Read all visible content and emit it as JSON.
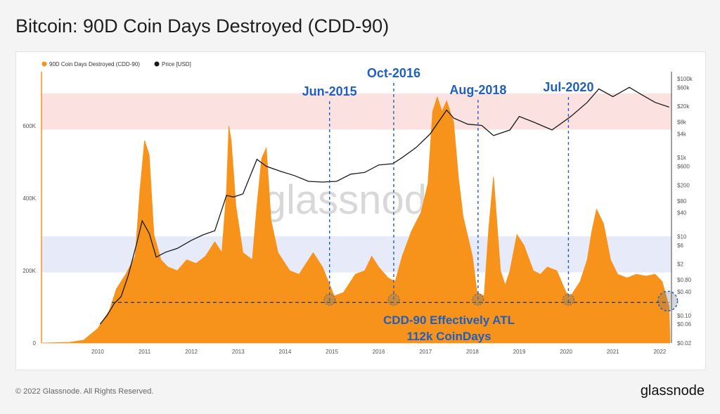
{
  "page": {
    "title": "Bitcoin: 90D Coin Days Destroyed (CDD-90)",
    "footer_left": "© 2022 Glassnode. All Rights Reserved.",
    "footer_right": "glassnode",
    "watermark": "glassnode"
  },
  "colors": {
    "cdd": "#f7931a",
    "price": "#1a1a1a",
    "annotation": "#1f5fbf",
    "red_band": "#fbdcdc",
    "blue_band": "#e3e8f8"
  },
  "chart_data": {
    "type": "area",
    "legend": [
      {
        "label": "90D Coin Days Destroyed (CDD-90)",
        "color": "#f7931a"
      },
      {
        "label": "Price [USD]",
        "color": "#1a1a1a"
      }
    ],
    "x_ticks": [
      "2010",
      "2011",
      "2012",
      "2013",
      "2014",
      "2015",
      "2016",
      "2017",
      "2018",
      "2019",
      "2020",
      "2021",
      "2022"
    ],
    "left_axis": {
      "ticks": [
        "0",
        "200K",
        "400K",
        "600K"
      ],
      "values": [
        0,
        200000,
        400000,
        600000
      ],
      "ylim": [
        0,
        750000
      ]
    },
    "right_axis": {
      "scale": "log",
      "ticks": [
        "$100k",
        "$60k",
        "$20k",
        "$8k",
        "$4k",
        "$1k",
        "$600",
        "$200",
        "$80",
        "$40",
        "$10",
        "$6",
        "$2",
        "$0.80",
        "$0.40",
        "$0.10",
        "$0.06",
        "$0.02"
      ],
      "values": [
        100000,
        60000,
        20000,
        8000,
        4000,
        1000,
        600,
        200,
        80,
        40,
        10,
        6,
        2,
        0.8,
        0.4,
        0.1,
        0.06,
        0.02
      ],
      "ylim": [
        0.02,
        150000
      ]
    },
    "bands": [
      {
        "name": "red",
        "axis": "left",
        "from": 590000,
        "to": 690000
      },
      {
        "name": "blue",
        "axis": "left",
        "from": 195000,
        "to": 295000
      }
    ],
    "series": [
      {
        "name": "90D Coin Days Destroyed (CDD-90)",
        "axis": "left",
        "points": [
          [
            2009.3,
            0
          ],
          [
            2009.9,
            2000
          ],
          [
            2010.2,
            8000
          ],
          [
            2010.5,
            40000
          ],
          [
            2010.75,
            90000
          ],
          [
            2010.9,
            150000
          ],
          [
            2011.1,
            190000
          ],
          [
            2011.3,
            240000
          ],
          [
            2011.4,
            420000
          ],
          [
            2011.5,
            560000
          ],
          [
            2011.6,
            520000
          ],
          [
            2011.7,
            300000
          ],
          [
            2011.85,
            230000
          ],
          [
            2012.0,
            210000
          ],
          [
            2012.2,
            200000
          ],
          [
            2012.4,
            230000
          ],
          [
            2012.6,
            220000
          ],
          [
            2012.8,
            240000
          ],
          [
            2013.0,
            280000
          ],
          [
            2013.15,
            250000
          ],
          [
            2013.25,
            420000
          ],
          [
            2013.3,
            600000
          ],
          [
            2013.35,
            560000
          ],
          [
            2013.45,
            380000
          ],
          [
            2013.6,
            250000
          ],
          [
            2013.8,
            230000
          ],
          [
            2013.9,
            380000
          ],
          [
            2014.0,
            510000
          ],
          [
            2014.1,
            540000
          ],
          [
            2014.2,
            340000
          ],
          [
            2014.35,
            250000
          ],
          [
            2014.6,
            200000
          ],
          [
            2014.8,
            190000
          ],
          [
            2015.0,
            230000
          ],
          [
            2015.1,
            250000
          ],
          [
            2015.3,
            210000
          ],
          [
            2015.55,
            130000
          ],
          [
            2015.75,
            140000
          ],
          [
            2016.0,
            190000
          ],
          [
            2016.2,
            200000
          ],
          [
            2016.35,
            240000
          ],
          [
            2016.5,
            210000
          ],
          [
            2016.7,
            180000
          ],
          [
            2016.85,
            170000
          ],
          [
            2017.0,
            240000
          ],
          [
            2017.2,
            310000
          ],
          [
            2017.4,
            360000
          ],
          [
            2017.55,
            440000
          ],
          [
            2017.65,
            640000
          ],
          [
            2017.75,
            680000
          ],
          [
            2017.85,
            640000
          ],
          [
            2017.95,
            670000
          ],
          [
            2018.1,
            610000
          ],
          [
            2018.2,
            460000
          ],
          [
            2018.3,
            350000
          ],
          [
            2018.5,
            240000
          ],
          [
            2018.6,
            140000
          ],
          [
            2018.75,
            130000
          ],
          [
            2018.85,
            320000
          ],
          [
            2018.95,
            460000
          ],
          [
            2019.1,
            200000
          ],
          [
            2019.2,
            160000
          ],
          [
            2019.3,
            200000
          ],
          [
            2019.45,
            300000
          ],
          [
            2019.6,
            270000
          ],
          [
            2019.8,
            200000
          ],
          [
            2019.95,
            190000
          ],
          [
            2020.1,
            210000
          ],
          [
            2020.3,
            200000
          ],
          [
            2020.5,
            140000
          ],
          [
            2020.6,
            130000
          ],
          [
            2020.8,
            170000
          ],
          [
            2020.95,
            230000
          ],
          [
            2021.05,
            310000
          ],
          [
            2021.15,
            370000
          ],
          [
            2021.3,
            330000
          ],
          [
            2021.45,
            230000
          ],
          [
            2021.6,
            190000
          ],
          [
            2021.8,
            180000
          ],
          [
            2022.0,
            190000
          ],
          [
            2022.2,
            185000
          ],
          [
            2022.4,
            190000
          ],
          [
            2022.55,
            170000
          ],
          [
            2022.7,
            100000
          ],
          [
            2022.72,
            0
          ]
        ]
      },
      {
        "name": "Price [USD]",
        "axis": "right",
        "points": [
          [
            2010.55,
            0.06
          ],
          [
            2010.7,
            0.1
          ],
          [
            2010.85,
            0.2
          ],
          [
            2011.0,
            0.3
          ],
          [
            2011.15,
            1
          ],
          [
            2011.35,
            8
          ],
          [
            2011.45,
            25
          ],
          [
            2011.6,
            12
          ],
          [
            2011.75,
            3
          ],
          [
            2011.95,
            4
          ],
          [
            2012.2,
            5
          ],
          [
            2012.5,
            8
          ],
          [
            2012.75,
            11
          ],
          [
            2013.0,
            14
          ],
          [
            2013.25,
            110
          ],
          [
            2013.4,
            100
          ],
          [
            2013.6,
            120
          ],
          [
            2013.9,
            900
          ],
          [
            2014.1,
            600
          ],
          [
            2014.4,
            450
          ],
          [
            2014.7,
            350
          ],
          [
            2015.0,
            250
          ],
          [
            2015.3,
            240
          ],
          [
            2015.6,
            250
          ],
          [
            2015.9,
            380
          ],
          [
            2016.2,
            420
          ],
          [
            2016.5,
            650
          ],
          [
            2016.8,
            700
          ],
          [
            2017.0,
            1000
          ],
          [
            2017.3,
            1800
          ],
          [
            2017.6,
            4000
          ],
          [
            2017.95,
            16000
          ],
          [
            2018.1,
            10000
          ],
          [
            2018.4,
            7000
          ],
          [
            2018.7,
            6500
          ],
          [
            2018.95,
            3600
          ],
          [
            2019.3,
            5000
          ],
          [
            2019.5,
            11000
          ],
          [
            2019.8,
            8000
          ],
          [
            2020.2,
            5000
          ],
          [
            2020.6,
            11000
          ],
          [
            2020.95,
            25000
          ],
          [
            2021.2,
            55000
          ],
          [
            2021.5,
            35000
          ],
          [
            2021.85,
            60000
          ],
          [
            2022.1,
            40000
          ],
          [
            2022.4,
            25000
          ],
          [
            2022.7,
            19000
          ]
        ]
      }
    ],
    "markers": [
      {
        "label": "Jun-2015",
        "x": 2015.45
      },
      {
        "label": "Oct-2016",
        "x": 2016.82
      },
      {
        "label": "Aug-2018",
        "x": 2018.62
      },
      {
        "label": "Jul-2020",
        "x": 2020.55
      }
    ],
    "atl_line": {
      "value": 112000,
      "from_x": 2010.8,
      "to_x": 2022.7
    },
    "annotation": {
      "line1": "CDD-90 Effectively ATL",
      "line2": "112k CoinDays"
    }
  }
}
